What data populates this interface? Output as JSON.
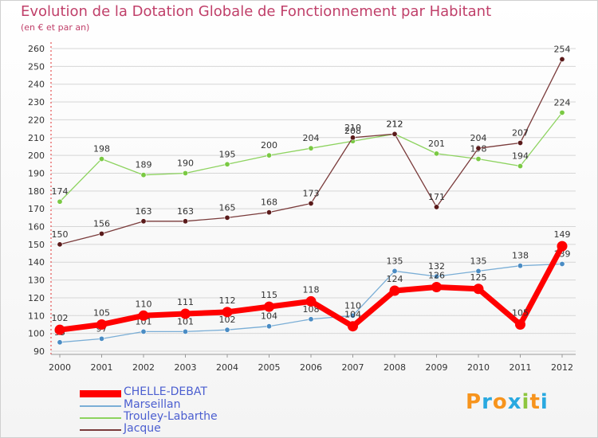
{
  "header": {
    "title": "Evolution de la Dotation Globale de Fonctionnement par Habitant",
    "subtitle": "(en € et par an)"
  },
  "colors": {
    "title": "#c0406a",
    "grid": "#d6d6d6",
    "legend_text": "#4b5ed0"
  },
  "chart_data": {
    "type": "line",
    "title": "Evolution de la Dotation Globale de Fonctionnement par Habitant",
    "ylabel": "(en € et par an)",
    "xlabel": "",
    "ylim": [
      90,
      260
    ],
    "yticks": [
      "90",
      "100",
      "110",
      "120",
      "130",
      "140",
      "150",
      "160",
      "170",
      "180",
      "190",
      "200",
      "210",
      "220",
      "230",
      "240",
      "250",
      "260"
    ],
    "categories": [
      "2000",
      "2001",
      "2002",
      "2003",
      "2004",
      "2005",
      "2006",
      "2007",
      "2008",
      "2009",
      "2010",
      "2011",
      "2012"
    ],
    "series": [
      {
        "name": "Trouley-Labarthe",
        "color": "#8dd35f",
        "marker": "#7ac943",
        "values": [
          174,
          198,
          189,
          190,
          195,
          200,
          204,
          208,
          212,
          201,
          198,
          194,
          224
        ],
        "labels": [
          "174",
          "198",
          "189",
          "190",
          "195",
          "200",
          "204",
          "208",
          "212",
          "201",
          "198",
          "194",
          "224"
        ]
      },
      {
        "name": "Jacque",
        "color": "#7a3b3b",
        "marker": "#5a1a1a",
        "values": [
          150,
          156,
          163,
          163,
          165,
          168,
          173,
          210,
          212,
          171,
          204,
          207,
          254
        ],
        "labels": [
          "150",
          "156",
          "163",
          "163",
          "165",
          "168",
          "173",
          "210",
          "212",
          "171",
          "204",
          "207",
          "254"
        ]
      },
      {
        "name": "Marseillan",
        "color": "#7aaed6",
        "marker": "#4a8cc4",
        "values": [
          95,
          97,
          101,
          101,
          102,
          104,
          108,
          110,
          135,
          132,
          135,
          138,
          139
        ],
        "labels": [
          "95",
          "97",
          "101",
          "101",
          "102",
          "104",
          "108",
          "110",
          "135",
          "132",
          "135",
          "138",
          "139"
        ]
      },
      {
        "name": "CHELLE-DEBAT",
        "color": "#ff0000",
        "marker": "#ff0000",
        "values": [
          102,
          105,
          110,
          111,
          112,
          115,
          118,
          104,
          124,
          126,
          125,
          105,
          149
        ],
        "labels": [
          "102",
          "105",
          "110",
          "111",
          "112",
          "115",
          "118",
          "104",
          "124",
          "126",
          "125",
          "105",
          "149"
        ]
      }
    ],
    "legend_position": "bottom-left"
  },
  "legend": [
    {
      "label": "CHELLE-DEBAT",
      "color": "#ff0000",
      "weight": "thick"
    },
    {
      "label": "Marseillan",
      "color": "#7aaed6",
      "weight": "thin"
    },
    {
      "label": "Trouley-Labarthe",
      "color": "#8dd35f",
      "weight": "thin"
    },
    {
      "label": "Jacque",
      "color": "#7a3b3b",
      "weight": "thin"
    }
  ],
  "logo": {
    "letters": [
      "P",
      "r",
      "o",
      "x",
      "i",
      "t",
      "i"
    ],
    "colors": [
      "#f7941d",
      "#29a9e0",
      "#f7941d",
      "#29a9e0",
      "#8dc63f",
      "#f7941d",
      "#29a9e0"
    ],
    "name": "Proxiti"
  }
}
